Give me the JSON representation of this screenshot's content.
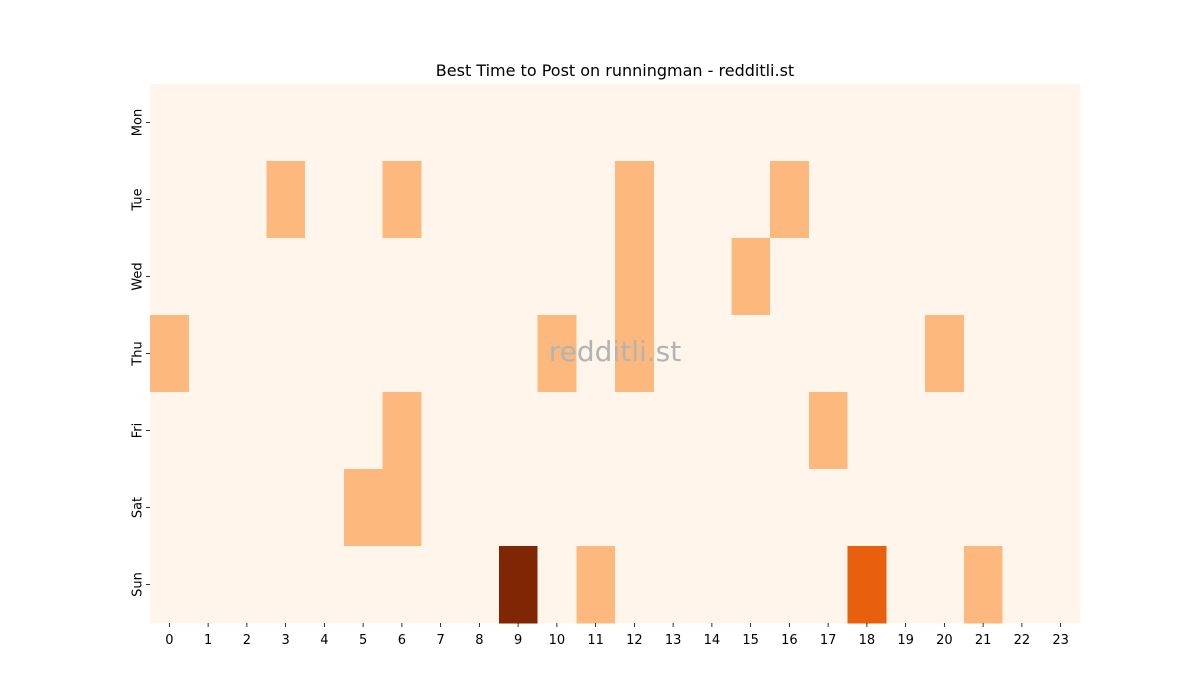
{
  "chart_data": {
    "type": "heatmap",
    "title": "Best Time to Post on runningman - redditli.st",
    "watermark": "redditli.st",
    "xlabel": "",
    "ylabel": "",
    "x_categories": [
      "0",
      "1",
      "2",
      "3",
      "4",
      "5",
      "6",
      "7",
      "8",
      "9",
      "10",
      "11",
      "12",
      "13",
      "14",
      "15",
      "16",
      "17",
      "18",
      "19",
      "20",
      "21",
      "22",
      "23"
    ],
    "y_categories": [
      "Mon",
      "Tue",
      "Wed",
      "Thu",
      "Fri",
      "Sat",
      "Sun"
    ],
    "colormap": "Oranges",
    "vmin": 0,
    "vmax": 3,
    "colors": {
      "0": "#fff5eb",
      "1": "#fdb97d",
      "2": "#e8600d",
      "3": "#7f2704"
    },
    "values": [
      [
        0,
        0,
        0,
        0,
        0,
        0,
        0,
        0,
        0,
        0,
        0,
        0,
        0,
        0,
        0,
        0,
        0,
        0,
        0,
        0,
        0,
        0,
        0,
        0
      ],
      [
        0,
        0,
        0,
        1,
        0,
        0,
        1,
        0,
        0,
        0,
        0,
        0,
        1,
        0,
        0,
        0,
        1,
        0,
        0,
        0,
        0,
        0,
        0,
        0
      ],
      [
        0,
        0,
        0,
        0,
        0,
        0,
        0,
        0,
        0,
        0,
        0,
        0,
        1,
        0,
        0,
        1,
        0,
        0,
        0,
        0,
        0,
        0,
        0,
        0
      ],
      [
        1,
        0,
        0,
        0,
        0,
        0,
        0,
        0,
        0,
        0,
        1,
        0,
        1,
        0,
        0,
        0,
        0,
        0,
        0,
        0,
        1,
        0,
        0,
        0
      ],
      [
        0,
        0,
        0,
        0,
        0,
        0,
        1,
        0,
        0,
        0,
        0,
        0,
        0,
        0,
        0,
        0,
        0,
        1,
        0,
        0,
        0,
        0,
        0,
        0
      ],
      [
        0,
        0,
        0,
        0,
        0,
        1,
        1,
        0,
        0,
        0,
        0,
        0,
        0,
        0,
        0,
        0,
        0,
        0,
        0,
        0,
        0,
        0,
        0,
        0
      ],
      [
        0,
        0,
        0,
        0,
        0,
        0,
        0,
        0,
        0,
        3,
        0,
        1,
        0,
        0,
        0,
        0,
        0,
        0,
        2,
        0,
        0,
        1,
        0,
        0
      ]
    ],
    "grid": false,
    "legend": "none"
  }
}
